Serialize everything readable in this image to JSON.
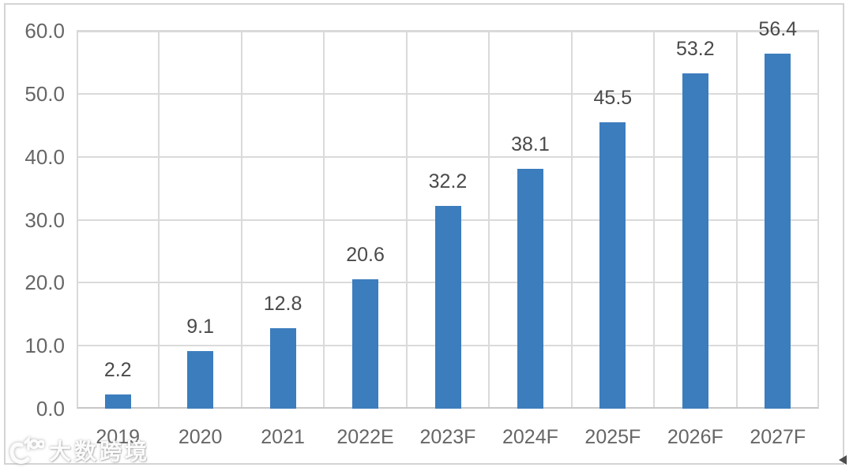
{
  "chart_data": {
    "type": "bar",
    "title": "",
    "xlabel": "",
    "ylabel": "",
    "categories": [
      "2019",
      "2020",
      "2021",
      "2022E",
      "2023F",
      "2024F",
      "2025F",
      "2026F",
      "2027F"
    ],
    "values": [
      2.2,
      9.1,
      12.8,
      20.6,
      32.2,
      38.1,
      45.5,
      53.2,
      56.4
    ],
    "value_labels": [
      "2.2",
      "9.1",
      "12.8",
      "20.6",
      "32.2",
      "38.1",
      "45.5",
      "53.2",
      "56.4"
    ],
    "ylim": [
      0,
      60
    ],
    "ytick_labels": [
      "0.0",
      "10.0",
      "20.0",
      "30.0",
      "40.0",
      "50.0",
      "60.0"
    ],
    "grid": true,
    "legend": "none",
    "bar_color": "#3c7dbd"
  },
  "colors": {
    "bar": "#3c7dbd",
    "gridline": "#dadada",
    "plot_border": "#d9d9d9",
    "axis_line": "#c7c7c7",
    "outer_border": "#d4d4d4",
    "axis_label": "#666666",
    "value_label": "#4a4a4a",
    "background": "#ffffff"
  },
  "watermark": {
    "text": "大数跨境",
    "logo": "swoosh-100-logo"
  },
  "cursor": {
    "glyph": "small-left-arrow"
  }
}
